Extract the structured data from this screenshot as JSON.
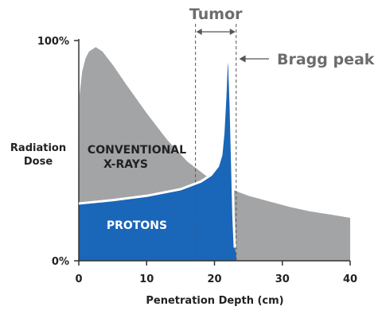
{
  "chart_data": {
    "type": "area",
    "title": "",
    "xlabel": "Penetration Depth (cm)",
    "ylabel": "Radiation Dose",
    "xlim": [
      0,
      40
    ],
    "ylim": [
      0,
      100
    ],
    "x_ticks": [
      "0",
      "10",
      "20",
      "30",
      "40"
    ],
    "y_ticks": [
      "0%",
      "100%"
    ],
    "grid": false,
    "legend": "none",
    "series": [
      {
        "name": "CONVENTIONAL X-RAYS",
        "color": "#a3a4a6",
        "points": [
          [
            0,
            0
          ],
          [
            0.1,
            75
          ],
          [
            0.5,
            86
          ],
          [
            1.0,
            92
          ],
          [
            1.5,
            95
          ],
          [
            2.5,
            97
          ],
          [
            3.5,
            95
          ],
          [
            5,
            89
          ],
          [
            7,
            80
          ],
          [
            10,
            67
          ],
          [
            13,
            55
          ],
          [
            16,
            45
          ],
          [
            19,
            38
          ],
          [
            22,
            33
          ],
          [
            25,
            29.5
          ],
          [
            28,
            27
          ],
          [
            31,
            24.5
          ],
          [
            34,
            22.5
          ],
          [
            37,
            21
          ],
          [
            40,
            19.5
          ],
          [
            40,
            0
          ]
        ]
      },
      {
        "name": "PROTONS",
        "color": "#1a66b8",
        "points": [
          [
            0,
            0
          ],
          [
            0,
            26
          ],
          [
            5,
            27.5
          ],
          [
            10,
            29.5
          ],
          [
            15,
            32.5
          ],
          [
            18,
            36
          ],
          [
            19.5,
            39
          ],
          [
            20.5,
            43
          ],
          [
            21.0,
            48
          ],
          [
            21.3,
            58
          ],
          [
            21.6,
            75
          ],
          [
            21.8,
            90
          ],
          [
            22.0,
            95
          ],
          [
            22.2,
            88
          ],
          [
            22.4,
            70
          ],
          [
            22.6,
            45
          ],
          [
            22.8,
            20
          ],
          [
            23.0,
            6
          ],
          [
            23.3,
            0
          ]
        ]
      }
    ],
    "annotations": [
      {
        "text": "Tumor",
        "x_start": 17.2,
        "x_end": 23.2
      },
      {
        "text": "Bragg peak",
        "x": 22,
        "y": 95
      }
    ]
  }
}
